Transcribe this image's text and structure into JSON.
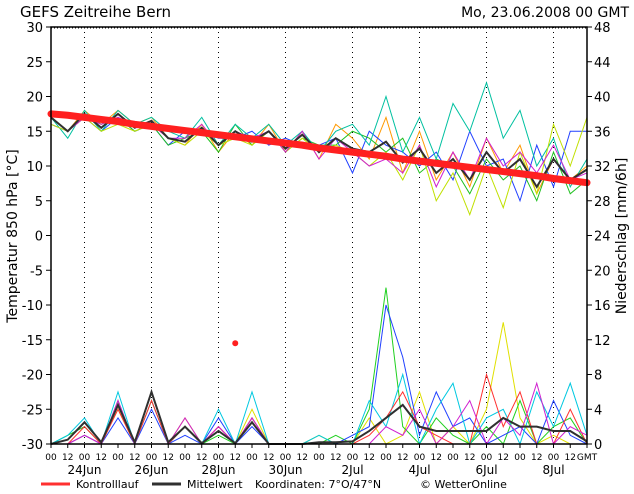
{
  "chart_data": {
    "type": "line",
    "title": "GEFS Zeitreihe Bern",
    "date_label": "Mo, 23.06.2008 00 GMT",
    "ylabel_left": "Temperatur 850 hPa [°C]",
    "ylabel_right": "Niederschlag [mm/6h]",
    "ylim_left": [
      -30,
      30
    ],
    "ylim_right": [
      0,
      48
    ],
    "yticks_left": [
      -30,
      -25,
      -20,
      -15,
      -10,
      -5,
      0,
      5,
      10,
      15,
      20,
      25,
      30
    ],
    "yticks_right": [
      0,
      4,
      8,
      12,
      16,
      20,
      24,
      28,
      32,
      36,
      40,
      44,
      48
    ],
    "x_hour_labels": [
      "00",
      "12",
      "00",
      "12",
      "00",
      "12",
      "00",
      "12",
      "00",
      "12",
      "00",
      "12",
      "00",
      "12",
      "00",
      "12",
      "00",
      "12",
      "00",
      "12",
      "00",
      "12",
      "00",
      "12",
      "00",
      "12",
      "00",
      "12",
      "00",
      "12",
      "00",
      "12",
      "GMT"
    ],
    "x_date_labels": [
      {
        "label": "24Jun",
        "index": 2
      },
      {
        "label": "26Jun",
        "index": 6
      },
      {
        "label": "28Jun",
        "index": 10
      },
      {
        "label": "30Jun",
        "index": 14
      },
      {
        "label": "2Jul",
        "index": 18
      },
      {
        "label": "4Jul",
        "index": 22
      },
      {
        "label": "6Jul",
        "index": 26
      },
      {
        "label": "8Jul",
        "index": 30
      }
    ],
    "grid": "dotted vertical every 2 days",
    "legend": {
      "control": "Kontrolllauf",
      "mean": "Mittelwert",
      "coords": "Koordinaten: 7°O/47°N",
      "credit": "© WetterOnline",
      "placement": "bottom"
    },
    "colors": {
      "control": "#ff2020",
      "mean": "#303030"
    },
    "control_temp": [
      17.5,
      17.3,
      17,
      16.7,
      16.4,
      16,
      15.7,
      15.4,
      15.1,
      14.8,
      14.5,
      14.2,
      13.9,
      13.6,
      13.3,
      13,
      12.6,
      12.3,
      12,
      11.7,
      11.4,
      11,
      10.7,
      10.4,
      10.1,
      9.8,
      9.5,
      9.2,
      8.9,
      8.6,
      8.2,
      7.9,
      7.6
    ],
    "control_precip": [
      null,
      null,
      null,
      null,
      null,
      null,
      null,
      null,
      null,
      null,
      null,
      11.6,
      null,
      null,
      null,
      null,
      null,
      null,
      null,
      null,
      null,
      null,
      null,
      null,
      null,
      null,
      null,
      null,
      null,
      null,
      null,
      null,
      null
    ],
    "mean_temp": [
      17,
      15,
      17.5,
      15.5,
      17.5,
      15.5,
      16.5,
      14,
      13.5,
      15.5,
      13,
      15,
      13.5,
      15,
      12.5,
      14.5,
      12,
      14,
      12.5,
      12,
      13.5,
      10.5,
      12.5,
      9,
      11,
      8,
      12,
      9,
      11,
      7,
      11,
      8,
      9.5
    ],
    "mean_precip": [
      0,
      0.5,
      2.5,
      0.2,
      4.5,
      0.2,
      6,
      0.2,
      2,
      0.1,
      1.5,
      0.1,
      2.5,
      0,
      0,
      0,
      0.2,
      0.2,
      0.3,
      1.5,
      3,
      4.5,
      2,
      1.5,
      1.5,
      1.5,
      1.5,
      3,
      2,
      2,
      1.5,
      1.5,
      0.3
    ],
    "members_temp": [
      {
        "color": "#ff9900",
        "values": [
          17,
          15,
          18,
          16,
          18,
          16,
          17,
          14,
          13,
          16,
          12,
          15,
          13,
          16,
          12,
          15,
          11,
          16,
          14,
          11,
          17,
          9,
          15,
          8,
          12,
          7,
          14,
          9,
          13,
          6,
          11,
          8,
          10
        ]
      },
      {
        "color": "#2040ff",
        "values": [
          16,
          15,
          17,
          15,
          17,
          15,
          16,
          13,
          15,
          15,
          14,
          14,
          15,
          13,
          14,
          13,
          13,
          14,
          9,
          15,
          13,
          12,
          10,
          12,
          8,
          15,
          10,
          11,
          5,
          13,
          7,
          15,
          15
        ]
      },
      {
        "color": "#20c020",
        "values": [
          17,
          15,
          17,
          16,
          17,
          15,
          16,
          13,
          14,
          15,
          12,
          16,
          13,
          15,
          12,
          14,
          13,
          13,
          15,
          14,
          12,
          14,
          9,
          11,
          10,
          6,
          11,
          8,
          10,
          5,
          12,
          6,
          8
        ]
      },
      {
        "color": "#00c0a0",
        "values": [
          17,
          14,
          18,
          15,
          18,
          16,
          17,
          15,
          14,
          17,
          13,
          16,
          14,
          16,
          13,
          15,
          12,
          15,
          16,
          13,
          20,
          12,
          17,
          11,
          19,
          15,
          22,
          14,
          18,
          10,
          14,
          7,
          11
        ]
      },
      {
        "color": "#c0e000",
        "values": [
          16,
          15,
          17,
          15,
          16,
          15,
          16,
          14,
          13,
          15,
          13,
          14,
          13,
          15,
          12,
          14,
          12,
          13,
          12,
          10,
          12,
          8,
          13,
          5,
          9,
          3,
          10,
          4,
          12,
          6,
          16,
          10,
          17
        ]
      },
      {
        "color": "#d020d0",
        "values": [
          17,
          15,
          17,
          16,
          17,
          16,
          16,
          14,
          14,
          16,
          13,
          15,
          14,
          15,
          12,
          15,
          11,
          14,
          12,
          10,
          11,
          9,
          13,
          7,
          12,
          8,
          14,
          10,
          12,
          9,
          13,
          8,
          9
        ]
      }
    ],
    "members_precip": [
      {
        "color": "#e0e000",
        "values": [
          0,
          0,
          1,
          0,
          4,
          0,
          5,
          0,
          3,
          0,
          2,
          0,
          4,
          0,
          0,
          0,
          1,
          0,
          0,
          3,
          0,
          1,
          6,
          0,
          2,
          0,
          4,
          14,
          3,
          0,
          1,
          0,
          0
        ]
      },
      {
        "color": "#20d020",
        "values": [
          0,
          1,
          2,
          0,
          5,
          0,
          6,
          0,
          2,
          0,
          1,
          0,
          3,
          0,
          0,
          0,
          0,
          1,
          0,
          4,
          18,
          2,
          0,
          3,
          1,
          0,
          2,
          0,
          5,
          0,
          2,
          3,
          0
        ]
      },
      {
        "color": "#2040ff",
        "values": [
          0,
          0,
          1,
          0,
          3,
          0,
          4,
          0,
          1,
          0,
          3,
          0,
          2,
          0,
          0,
          0,
          0,
          0,
          1,
          2,
          16,
          10,
          1,
          6,
          2,
          3,
          0,
          1,
          2,
          0,
          5,
          1,
          0
        ]
      },
      {
        "color": "#00c8e0",
        "values": [
          0,
          1,
          3,
          0,
          6,
          0,
          5,
          0,
          2,
          0,
          4,
          0,
          6,
          0,
          0,
          0,
          1,
          0,
          0,
          5,
          2,
          8,
          0,
          4,
          7,
          0,
          3,
          4,
          0,
          6,
          2,
          7,
          1
        ]
      },
      {
        "color": "#ff3030",
        "values": [
          0,
          0,
          2,
          0,
          4,
          0,
          5,
          0,
          2,
          0,
          2,
          0,
          3,
          0,
          0,
          0,
          0,
          0,
          0,
          1,
          3,
          6,
          2,
          1,
          0,
          0,
          8,
          2,
          6,
          0,
          0,
          4,
          0
        ]
      },
      {
        "color": "#d020d0",
        "values": [
          0,
          0,
          1,
          0,
          5,
          0,
          6,
          0,
          3,
          0,
          2,
          0,
          3,
          0,
          0,
          0,
          0,
          0,
          0,
          0,
          2,
          1,
          4,
          0,
          2,
          5,
          0,
          3,
          1,
          7,
          0,
          2,
          1
        ]
      }
    ]
  }
}
